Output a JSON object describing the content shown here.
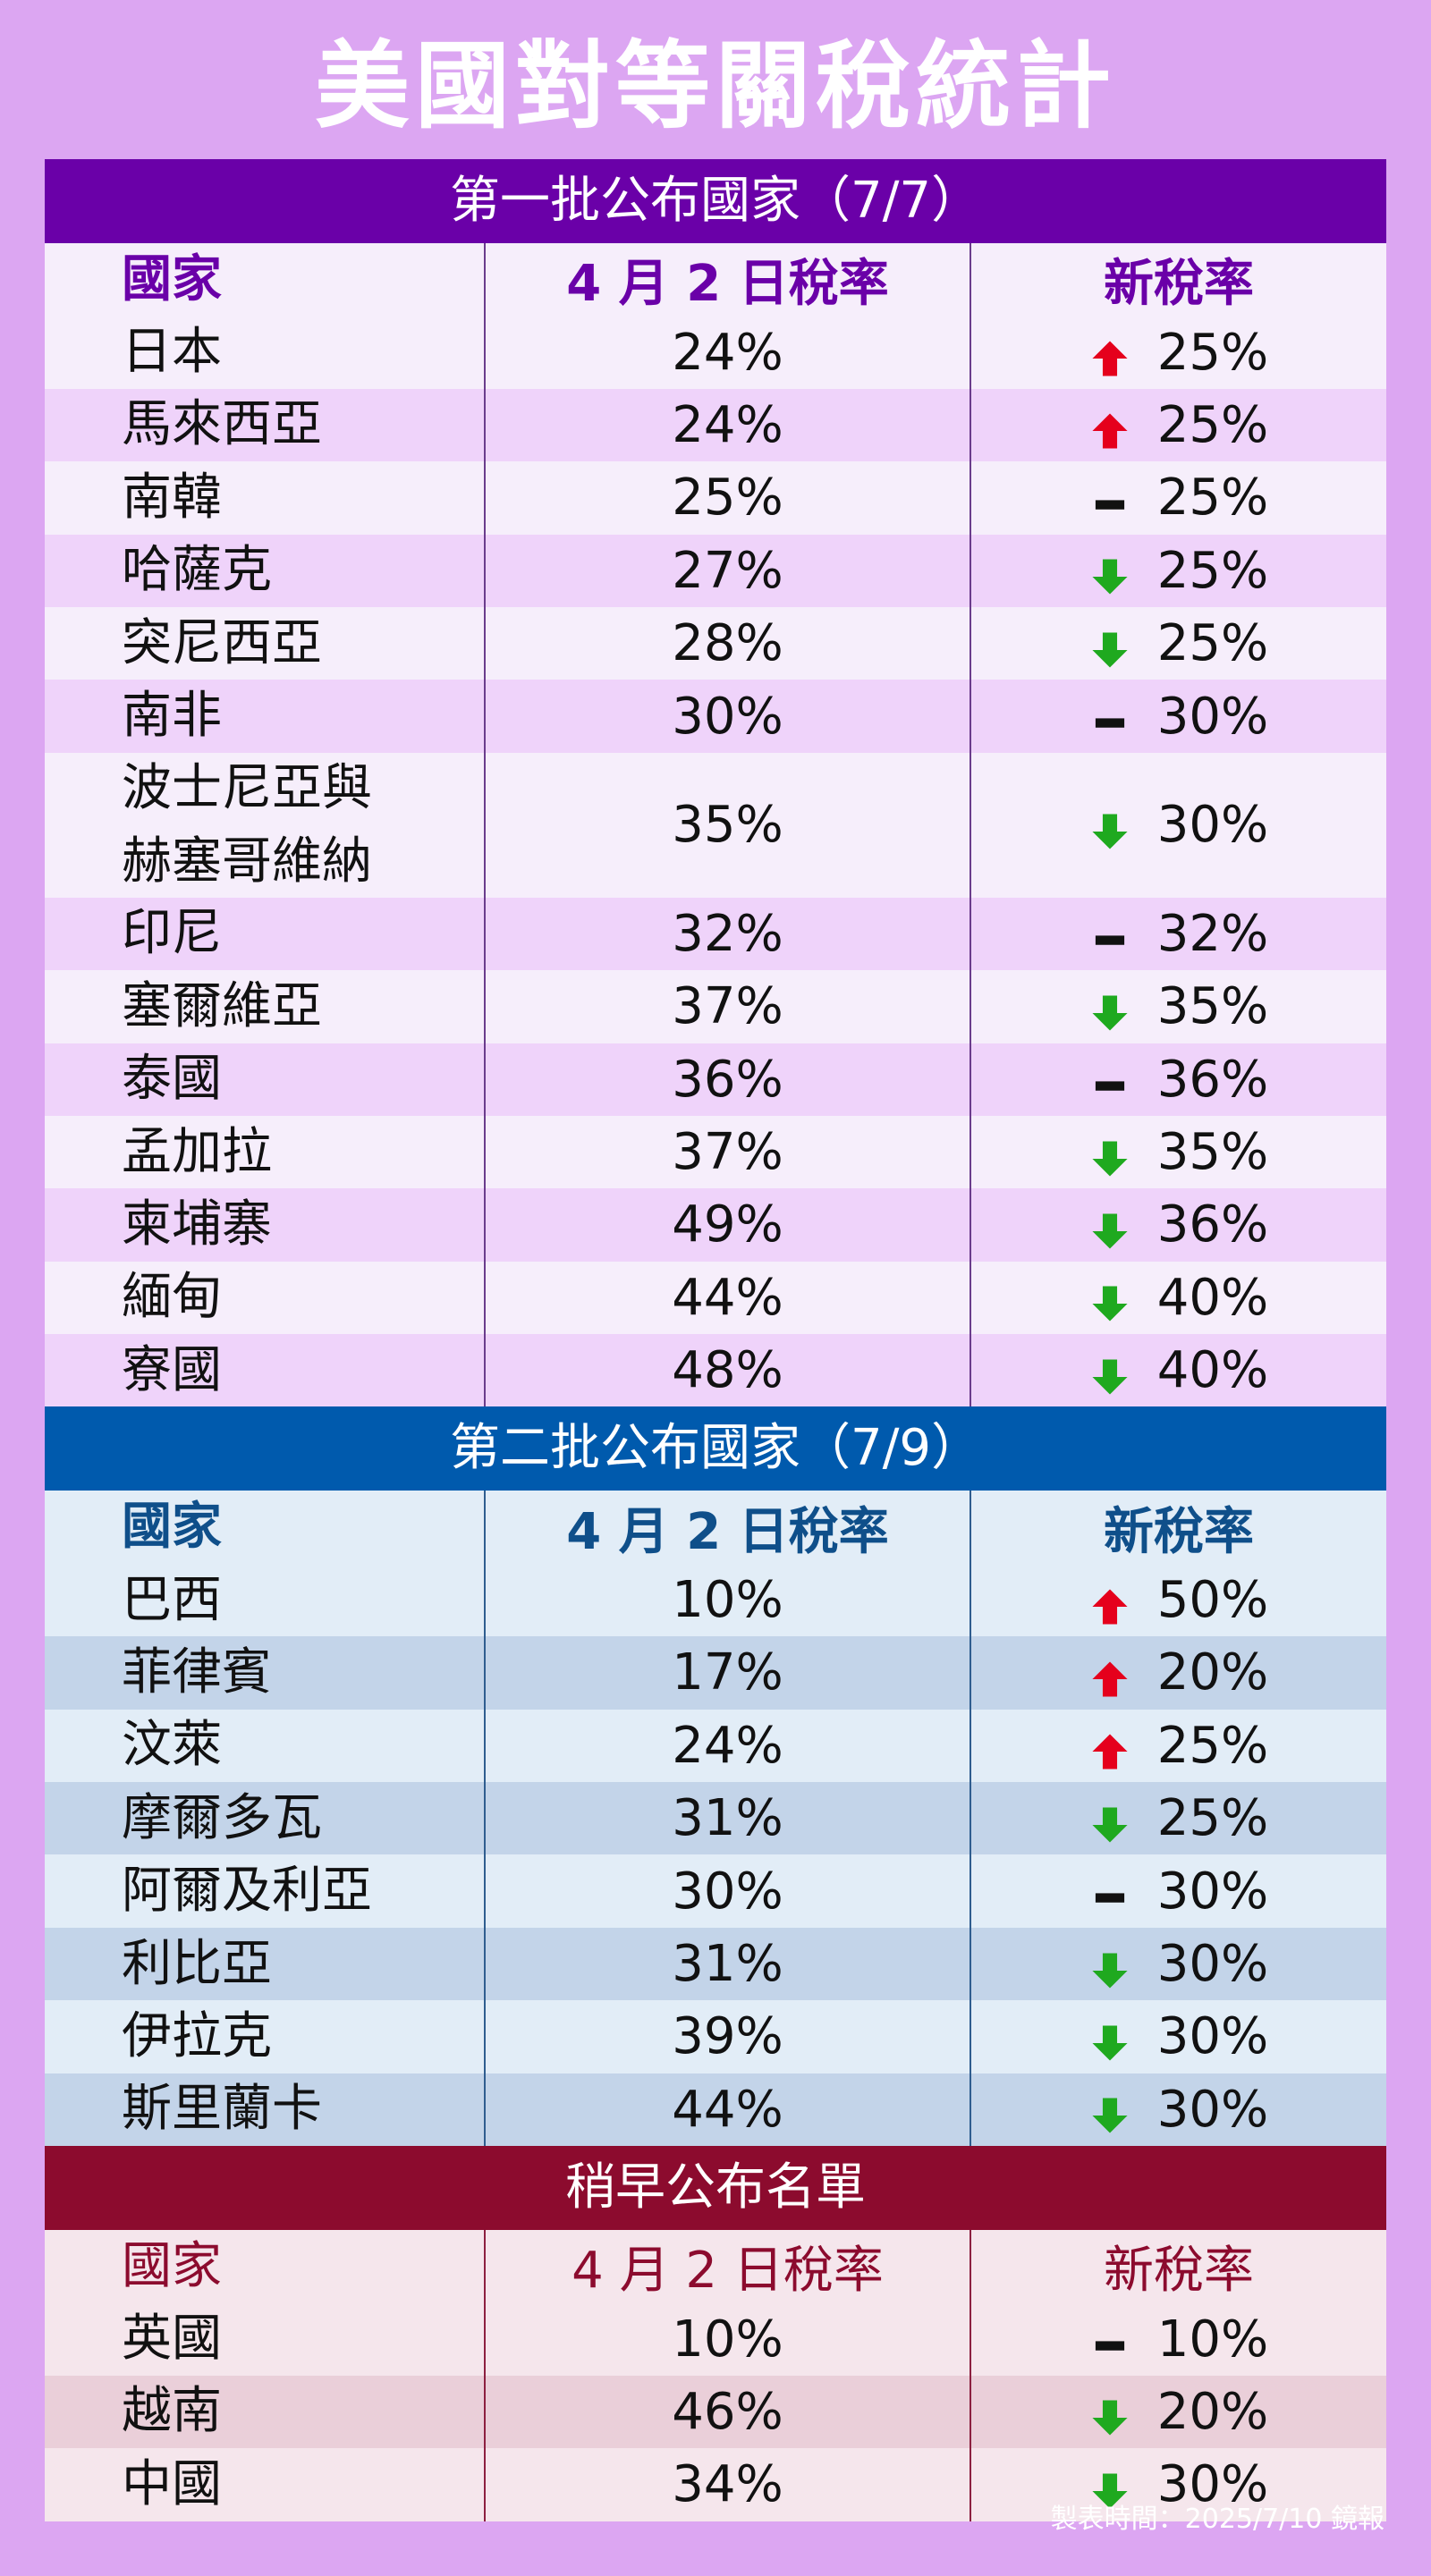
{
  "title": "美國對等關稅統計",
  "colors": {
    "background": "#dca6f2",
    "up": "#e5001c",
    "down": "#1fa91f",
    "same": "#111111",
    "section1": "#6a00a8",
    "section2": "#005aad",
    "section3": "#8c0b2e"
  },
  "columns": {
    "country": "國家",
    "april_rate": "4 月 2 日稅率",
    "new_rate": "新稅率"
  },
  "sections": [
    {
      "header": "第一批公布國家（7/7）",
      "rows": [
        {
          "country": "日本",
          "april": "24%",
          "new": "25%",
          "trend": "up"
        },
        {
          "country": "馬來西亞",
          "april": "24%",
          "new": "25%",
          "trend": "up"
        },
        {
          "country": "南韓",
          "april": "25%",
          "new": "25%",
          "trend": "same"
        },
        {
          "country": "哈薩克",
          "april": "27%",
          "new": "25%",
          "trend": "down"
        },
        {
          "country": "突尼西亞",
          "april": "28%",
          "new": "25%",
          "trend": "down"
        },
        {
          "country": "南非",
          "april": "30%",
          "new": "30%",
          "trend": "same"
        },
        {
          "country": "波士尼亞與",
          "country_line2": "赫塞哥維納",
          "april": "35%",
          "new": "30%",
          "trend": "down"
        },
        {
          "country": "印尼",
          "april": "32%",
          "new": "32%",
          "trend": "same"
        },
        {
          "country": "塞爾維亞",
          "april": "37%",
          "new": "35%",
          "trend": "down"
        },
        {
          "country": "泰國",
          "april": "36%",
          "new": "36%",
          "trend": "same"
        },
        {
          "country": "孟加拉",
          "april": "37%",
          "new": "35%",
          "trend": "down"
        },
        {
          "country": "柬埔寨",
          "april": "49%",
          "new": "36%",
          "trend": "down"
        },
        {
          "country": "緬甸",
          "april": "44%",
          "new": "40%",
          "trend": "down"
        },
        {
          "country": "寮國",
          "april": "48%",
          "new": "40%",
          "trend": "down"
        }
      ]
    },
    {
      "header": "第二批公布國家（7/9）",
      "rows": [
        {
          "country": "巴西",
          "april": "10%",
          "new": "50%",
          "trend": "up"
        },
        {
          "country": "菲律賓",
          "april": "17%",
          "new": "20%",
          "trend": "up"
        },
        {
          "country": "汶萊",
          "april": "24%",
          "new": "25%",
          "trend": "up"
        },
        {
          "country": "摩爾多瓦",
          "april": "31%",
          "new": "25%",
          "trend": "down"
        },
        {
          "country": "阿爾及利亞",
          "april": "30%",
          "new": "30%",
          "trend": "same"
        },
        {
          "country": "利比亞",
          "april": "31%",
          "new": "30%",
          "trend": "down"
        },
        {
          "country": "伊拉克",
          "april": "39%",
          "new": "30%",
          "trend": "down"
        },
        {
          "country": "斯里蘭卡",
          "april": "44%",
          "new": "30%",
          "trend": "down"
        }
      ]
    },
    {
      "header": "稍早公布名單",
      "rows": [
        {
          "country": "英國",
          "april": "10%",
          "new": "10%",
          "trend": "same"
        },
        {
          "country": "越南",
          "april": "46%",
          "new": "20%",
          "trend": "down"
        },
        {
          "country": "中國",
          "april": "34%",
          "new": "30%",
          "trend": "down"
        }
      ]
    }
  ],
  "footer": "製表時間：2025/7/10 鏡報"
}
